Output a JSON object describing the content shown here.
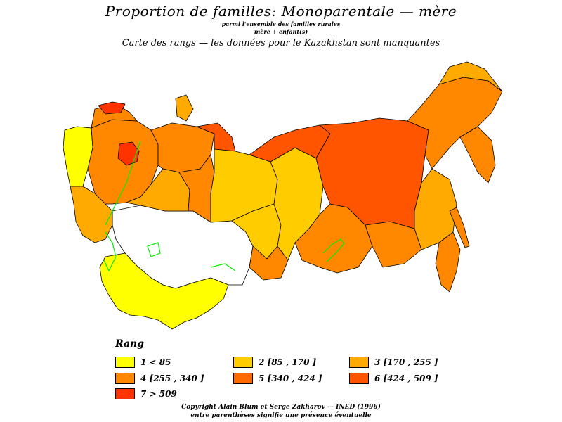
{
  "header": {
    "title": "Proportion de familles: Monoparentale — mère",
    "subtitle1": "parmi l'ensemble des familles rurales",
    "subtitle2": "mère + enfant(s)",
    "subtitle3": "Carte des rangs — les données pour le Kazakhstan sont manquantes"
  },
  "legend": {
    "title": "Rang",
    "items": [
      {
        "label": "1  <  85",
        "color": "#ffff00"
      },
      {
        "label": "2 [85 ,  170 ]",
        "color": "#ffcc00"
      },
      {
        "label": "3 [170 ,  255 ]",
        "color": "#ffaa00"
      },
      {
        "label": "4 [255 ,  340 ]",
        "color": "#ff8800"
      },
      {
        "label": "5 [340 ,  424 ]",
        "color": "#ff6a00"
      },
      {
        "label": "6 [424 ,  509 ]",
        "color": "#ff5500"
      },
      {
        "label": "7  >  509",
        "color": "#ff3300"
      }
    ]
  },
  "footer": {
    "copyright": "Copyright Alain Blum et Serge Zakharov — INED (1996)",
    "note": "entre parenthèses signifie une présence éventuelle"
  },
  "colors": {
    "missing": "#ffffff",
    "boundary": "#000000",
    "water": "#00ee00"
  }
}
